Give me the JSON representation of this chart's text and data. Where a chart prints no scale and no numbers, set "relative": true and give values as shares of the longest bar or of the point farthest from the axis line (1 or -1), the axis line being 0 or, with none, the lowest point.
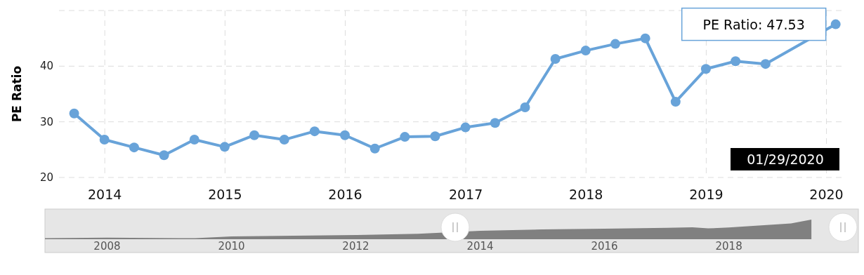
{
  "chart_data": [
    {
      "type": "line",
      "ylabel": "PE Ratio",
      "x": [
        "2013-09-30",
        "2013-12-31",
        "2014-03-31",
        "2014-06-30",
        "2014-09-30",
        "2014-12-31",
        "2015-03-31",
        "2015-06-30",
        "2015-09-30",
        "2015-12-31",
        "2016-03-31",
        "2016-06-30",
        "2016-09-30",
        "2016-12-31",
        "2017-03-31",
        "2017-06-30",
        "2017-09-30",
        "2017-12-31",
        "2018-03-31",
        "2018-06-30",
        "2018-09-30",
        "2018-12-31",
        "2019-03-31",
        "2019-06-30",
        "2020-01-29"
      ],
      "series": [
        {
          "color": "#68a3d9",
          "values": [
            31.5,
            26.8,
            25.4,
            24.0,
            26.8,
            25.5,
            27.6,
            26.8,
            28.3,
            27.6,
            25.2,
            27.3,
            27.4,
            29.0,
            29.8,
            32.6,
            41.3,
            42.8,
            44.0,
            45.0,
            33.6,
            39.5,
            40.9,
            40.4,
            47.53
          ]
        }
      ],
      "xlim": [
        "2013-08-15",
        "2020-02-20"
      ],
      "xticks": [
        "2014",
        "2015",
        "2016",
        "2017",
        "2018",
        "2019",
        "2020"
      ],
      "ylim": [
        20,
        50
      ],
      "yticks": [
        20,
        30,
        40,
        {
          "value": 50,
          "label": null
        }
      ],
      "grid": true,
      "marker": "circle",
      "line_style": "solid",
      "annotations": [
        {
          "text": "PE Ratio: 47.53",
          "x": "2020-01-29",
          "y": 47.53
        },
        "01/29/2020"
      ]
    },
    {
      "type": "area",
      "relative": true,
      "x": [
        "2007-01-01",
        "2008-01-01",
        "2009-06-01",
        "2010-01-01",
        "2011-01-01",
        "2012-01-01",
        "2013-01-01",
        "2014-01-01",
        "2015-01-01",
        "2016-01-01",
        "2017-01-01",
        "2017-06-01",
        "2017-09-01",
        "2018-01-01",
        "2019-01-01",
        "2019-05-01"
      ],
      "series": [
        {
          "color": "#808080",
          "values": [
            0.05,
            0.08,
            0.05,
            0.14,
            0.18,
            0.21,
            0.28,
            0.43,
            0.5,
            0.54,
            0.58,
            0.61,
            0.55,
            0.6,
            0.8,
            1
          ]
        }
      ],
      "xlim": [
        "2007-01-01",
        "2020-02-01"
      ],
      "xticks": [
        "2008",
        "2010",
        "2012",
        "2014",
        "2016",
        "2018"
      ],
      "tick_labels": "x"
    }
  ]
}
